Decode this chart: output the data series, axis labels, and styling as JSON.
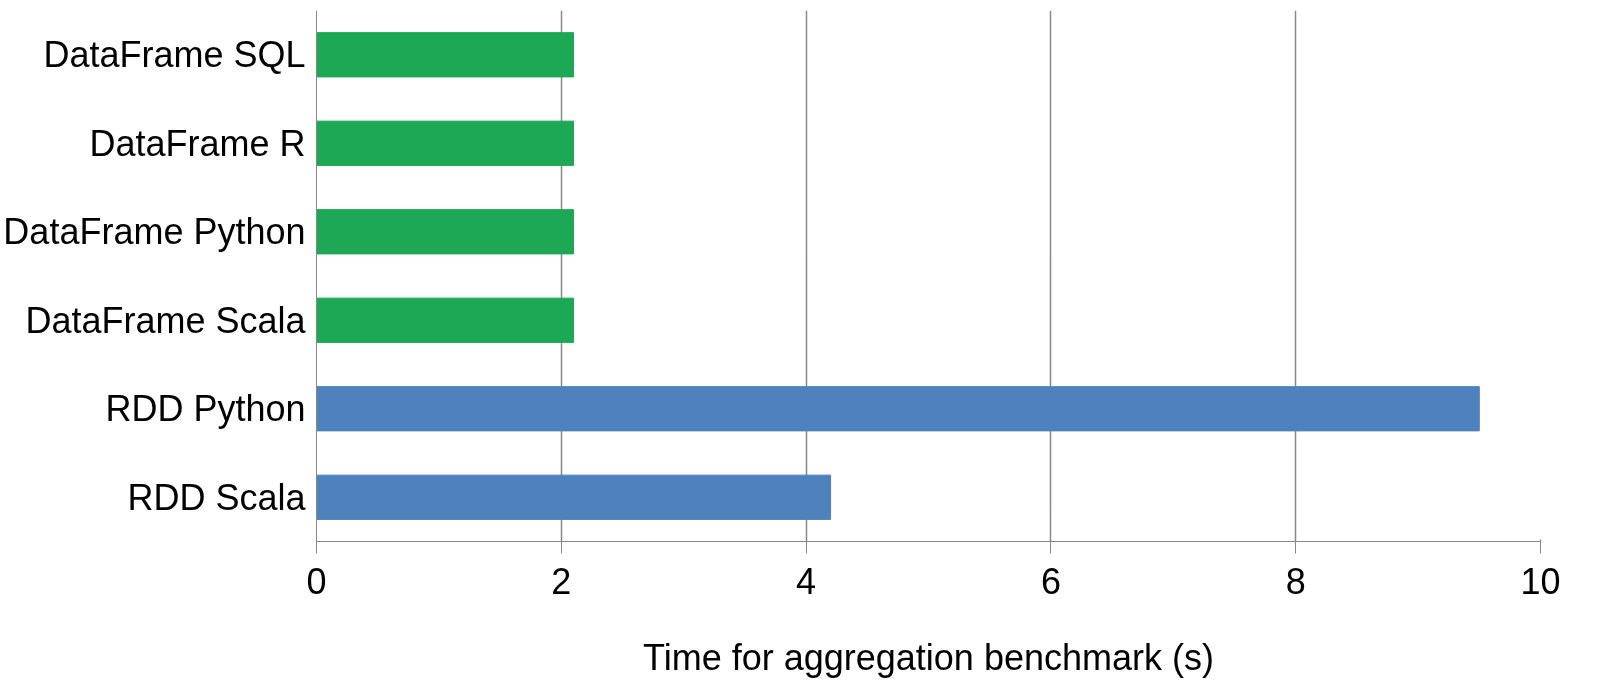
{
  "chart_data": {
    "type": "bar",
    "orientation": "horizontal",
    "xlabel": "Time for aggregation benchmark (s)",
    "categories": [
      "DataFrame SQL",
      "DataFrame R",
      "DataFrame Python",
      "DataFrame Scala",
      "RDD Python",
      "RDD Scala"
    ],
    "values": [
      2.1,
      2.1,
      2.1,
      2.1,
      9.5,
      4.2
    ],
    "colors": [
      "#1ca855",
      "#1ca855",
      "#1ca855",
      "#1ca855",
      "#4f81bd",
      "#4f81bd"
    ],
    "xlim": [
      0,
      10
    ],
    "xticks": [
      0,
      2,
      4,
      6,
      8,
      10
    ],
    "grid": "x"
  }
}
